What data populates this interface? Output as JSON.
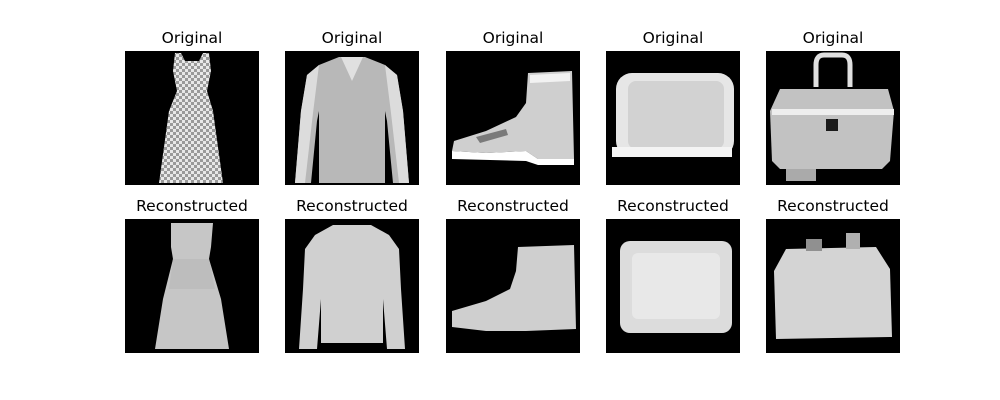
{
  "figure": {
    "rows": [
      {
        "row": "original",
        "panels": [
          {
            "title": "Original",
            "item": "dress-icon"
          },
          {
            "title": "Original",
            "item": "long-sleeve-shirt-icon"
          },
          {
            "title": "Original",
            "item": "ankle-boot-icon"
          },
          {
            "title": "Original",
            "item": "bag-icon"
          },
          {
            "title": "Original",
            "item": "handbag-icon"
          }
        ]
      },
      {
        "row": "reconstructed",
        "panels": [
          {
            "title": "Reconstructed",
            "item": "dress-icon"
          },
          {
            "title": "Reconstructed",
            "item": "long-sleeve-shirt-icon"
          },
          {
            "title": "Reconstructed",
            "item": "ankle-boot-icon"
          },
          {
            "title": "Reconstructed",
            "item": "bag-icon"
          },
          {
            "title": "Reconstructed",
            "item": "handbag-icon"
          }
        ]
      }
    ],
    "background_color": "#000000",
    "garment_color": "#d9d9d9"
  }
}
